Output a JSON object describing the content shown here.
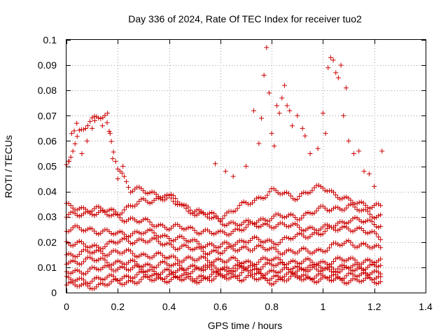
{
  "chart_data": {
    "type": "scatter",
    "title": "Day 336 of 2024, Rate Of TEC Index for receiver tuo2",
    "xlabel": "GPS time / hours",
    "ylabel": "ROTI / TECUs",
    "xlim": [
      0,
      1.4
    ],
    "ylim": [
      0,
      0.1
    ],
    "xticks": [
      "0",
      "0.2",
      "0.4",
      "0.6",
      "0.8",
      "1",
      "1.2",
      "1.4"
    ],
    "yticks": [
      "0",
      "0.01",
      "0.02",
      "0.03",
      "0.04",
      "0.05",
      "0.06",
      "0.07",
      "0.08",
      "0.09",
      "0.1"
    ],
    "grid": true,
    "marker": "plus",
    "color": "#cc0000",
    "x_step": 0.00833,
    "x_end": 1.23,
    "series": [
      {
        "x": [
          0.0,
          0.1,
          0.2,
          0.3,
          0.4,
          0.5,
          0.6,
          0.7,
          0.8,
          0.9,
          1.0,
          1.1,
          1.23
        ],
        "y": [
          0.003,
          0.0025,
          0.004,
          0.005,
          0.0055,
          0.005,
          0.006,
          0.006,
          0.0045,
          0.006,
          0.005,
          0.005,
          0.0045
        ]
      },
      {
        "x": [
          0.0,
          0.1,
          0.2,
          0.3,
          0.4,
          0.5,
          0.6,
          0.7,
          0.8,
          0.9,
          1.0,
          1.1,
          1.23
        ],
        "y": [
          0.005,
          0.005,
          0.006,
          0.007,
          0.0065,
          0.006,
          0.007,
          0.008,
          0.006,
          0.007,
          0.006,
          0.007,
          0.006
        ]
      },
      {
        "x": [
          0.0,
          0.1,
          0.2,
          0.3,
          0.4,
          0.5,
          0.6,
          0.7,
          0.8,
          0.9,
          1.0,
          1.1,
          1.23
        ],
        "y": [
          0.008,
          0.009,
          0.01,
          0.009,
          0.008,
          0.009,
          0.01,
          0.009,
          0.008,
          0.009,
          0.01,
          0.009,
          0.008
        ]
      },
      {
        "x": [
          0.0,
          0.1,
          0.2,
          0.3,
          0.4,
          0.5,
          0.6,
          0.7,
          0.8,
          0.9,
          1.0,
          1.1,
          1.23
        ],
        "y": [
          0.012,
          0.013,
          0.012,
          0.011,
          0.011,
          0.01,
          0.009,
          0.01,
          0.011,
          0.01,
          0.009,
          0.01,
          0.011
        ]
      },
      {
        "x": [
          0.0,
          0.1,
          0.2,
          0.3,
          0.4,
          0.5,
          0.6,
          0.7,
          0.8,
          0.9,
          1.0,
          1.1,
          1.23
        ],
        "y": [
          0.015,
          0.016,
          0.016,
          0.015,
          0.014,
          0.013,
          0.013,
          0.012,
          0.013,
          0.012,
          0.012,
          0.013,
          0.012
        ]
      },
      {
        "x": [
          0.0,
          0.1,
          0.2,
          0.3,
          0.4,
          0.5,
          0.6,
          0.7,
          0.8,
          0.9,
          1.0,
          1.1,
          1.23
        ],
        "y": [
          0.02,
          0.018,
          0.02,
          0.021,
          0.019,
          0.017,
          0.016,
          0.018,
          0.017,
          0.016,
          0.017,
          0.02,
          0.017
        ]
      },
      {
        "x": [
          0.0,
          0.1,
          0.2,
          0.3,
          0.4,
          0.5,
          0.6,
          0.7,
          0.8,
          0.9,
          1.0,
          1.1,
          1.23
        ],
        "y": [
          0.025,
          0.025,
          0.023,
          0.024,
          0.022,
          0.02,
          0.018,
          0.021,
          0.02,
          0.022,
          0.024,
          0.026,
          0.022
        ]
      },
      {
        "x": [
          0.0,
          0.1,
          0.2,
          0.3,
          0.4,
          0.5,
          0.6,
          0.7,
          0.8,
          0.9,
          1.0,
          1.1,
          1.23
        ],
        "y": [
          0.03,
          0.032,
          0.03,
          0.028,
          0.026,
          0.025,
          0.023,
          0.026,
          0.027,
          0.026,
          0.025,
          0.029,
          0.027
        ]
      },
      {
        "x": [
          0.0,
          0.1,
          0.2,
          0.3,
          0.4,
          0.5,
          0.6,
          0.7,
          0.8,
          0.9,
          1.0,
          1.1,
          1.23
        ],
        "y": [
          0.034,
          0.033,
          0.032,
          0.036,
          0.038,
          0.032,
          0.028,
          0.027,
          0.03,
          0.03,
          0.033,
          0.034,
          0.03
        ]
      },
      {
        "x": [
          0.0,
          0.05,
          0.1,
          0.15,
          0.2,
          0.25,
          0.3,
          0.4,
          0.5,
          0.6,
          0.7,
          0.8,
          0.9,
          1.0,
          1.1,
          1.23
        ],
        "y": [
          0.05,
          0.064,
          0.068,
          0.07,
          0.05,
          0.04,
          0.041,
          0.037,
          0.032,
          0.03,
          0.035,
          0.04,
          0.038,
          0.042,
          0.036,
          0.034
        ]
      }
    ],
    "scatter_points": [
      {
        "x": 0.01,
        "y": 0.052
      },
      {
        "x": 0.02,
        "y": 0.063
      },
      {
        "x": 0.03,
        "y": 0.064
      },
      {
        "x": 0.04,
        "y": 0.067
      },
      {
        "x": 0.06,
        "y": 0.055
      },
      {
        "x": 0.08,
        "y": 0.06
      },
      {
        "x": 0.1,
        "y": 0.065
      },
      {
        "x": 0.11,
        "y": 0.068
      },
      {
        "x": 0.14,
        "y": 0.066
      },
      {
        "x": 0.16,
        "y": 0.071
      },
      {
        "x": 0.17,
        "y": 0.063
      },
      {
        "x": 0.18,
        "y": 0.053
      },
      {
        "x": 0.2,
        "y": 0.045
      },
      {
        "x": 0.22,
        "y": 0.05
      },
      {
        "x": 0.58,
        "y": 0.051
      },
      {
        "x": 0.62,
        "y": 0.048
      },
      {
        "x": 0.65,
        "y": 0.046
      },
      {
        "x": 0.7,
        "y": 0.05
      },
      {
        "x": 0.73,
        "y": 0.072
      },
      {
        "x": 0.75,
        "y": 0.059
      },
      {
        "x": 0.76,
        "y": 0.069
      },
      {
        "x": 0.77,
        "y": 0.086
      },
      {
        "x": 0.78,
        "y": 0.097
      },
      {
        "x": 0.79,
        "y": 0.079
      },
      {
        "x": 0.8,
        "y": 0.063
      },
      {
        "x": 0.81,
        "y": 0.058
      },
      {
        "x": 0.82,
        "y": 0.074
      },
      {
        "x": 0.83,
        "y": 0.071
      },
      {
        "x": 0.84,
        "y": 0.077
      },
      {
        "x": 0.85,
        "y": 0.082
      },
      {
        "x": 0.86,
        "y": 0.074
      },
      {
        "x": 0.87,
        "y": 0.072
      },
      {
        "x": 0.88,
        "y": 0.066
      },
      {
        "x": 0.9,
        "y": 0.07
      },
      {
        "x": 0.92,
        "y": 0.065
      },
      {
        "x": 0.93,
        "y": 0.062
      },
      {
        "x": 0.95,
        "y": 0.055
      },
      {
        "x": 0.98,
        "y": 0.057
      },
      {
        "x": 1.0,
        "y": 0.071
      },
      {
        "x": 1.01,
        "y": 0.063
      },
      {
        "x": 1.02,
        "y": 0.089
      },
      {
        "x": 1.03,
        "y": 0.093
      },
      {
        "x": 1.04,
        "y": 0.092
      },
      {
        "x": 1.05,
        "y": 0.087
      },
      {
        "x": 1.06,
        "y": 0.085
      },
      {
        "x": 1.07,
        "y": 0.09
      },
      {
        "x": 1.08,
        "y": 0.07
      },
      {
        "x": 1.09,
        "y": 0.081
      },
      {
        "x": 1.1,
        "y": 0.06
      },
      {
        "x": 1.12,
        "y": 0.055
      },
      {
        "x": 1.14,
        "y": 0.056
      },
      {
        "x": 1.16,
        "y": 0.048
      },
      {
        "x": 1.18,
        "y": 0.047
      },
      {
        "x": 1.2,
        "y": 0.042
      },
      {
        "x": 1.23,
        "y": 0.056
      }
    ]
  }
}
